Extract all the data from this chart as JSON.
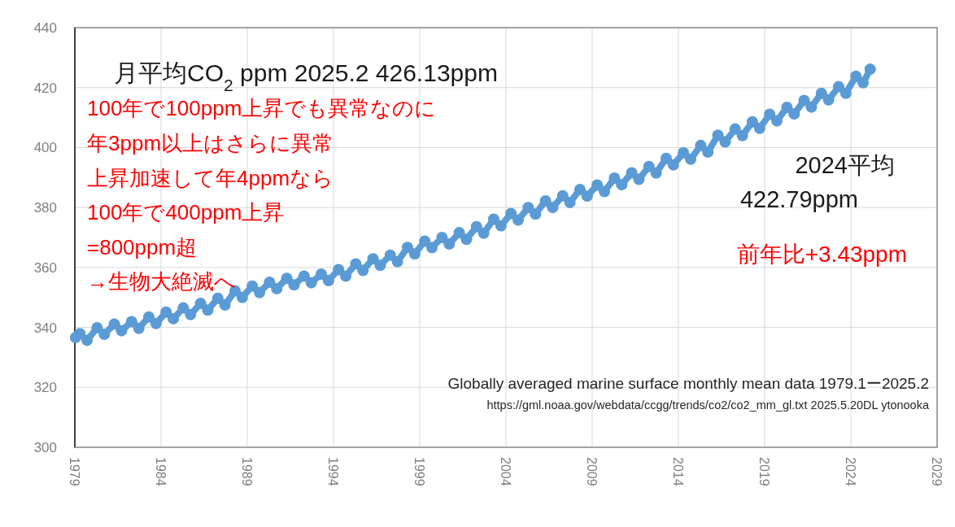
{
  "chart_data": {
    "type": "line",
    "title": "月平均CO$_{2}$  ppm   2025.2   426.13ppm",
    "annotations": [
      "100年で100ppm上昇でも異常なのに",
      "年3ppm以上はさらに異常",
      "上昇加速して年4ppmなら",
      "100年で400ppm上昇",
      "=800ppm超",
      "→生物大絶滅へ",
      "2024平均",
      "422.79ppm",
      "前年比+3.43ppm",
      "Globally averaged marine surface monthly mean data  1979.1ー2025.2",
      "https://gml.noaa.gov/webdata/ccgg/trends/co2/co2_mm_gl.txt  2025.5.20DL  ytonooka"
    ],
    "x": [
      1979.04,
      1979.29,
      1979.71,
      1980.29,
      1980.71,
      1981.29,
      1981.71,
      1982.29,
      1982.71,
      1983.29,
      1983.71,
      1984.29,
      1984.71,
      1985.29,
      1985.71,
      1986.29,
      1986.71,
      1987.29,
      1987.71,
      1988.29,
      1988.71,
      1989.29,
      1989.71,
      1990.29,
      1990.71,
      1991.29,
      1991.71,
      1992.29,
      1992.71,
      1993.29,
      1993.71,
      1994.29,
      1994.71,
      1995.29,
      1995.71,
      1996.29,
      1996.71,
      1997.29,
      1997.71,
      1998.29,
      1998.71,
      1999.29,
      1999.71,
      2000.29,
      2000.71,
      2001.29,
      2001.71,
      2002.29,
      2002.71,
      2003.29,
      2003.71,
      2004.29,
      2004.71,
      2005.29,
      2005.71,
      2006.29,
      2006.71,
      2007.29,
      2007.71,
      2008.29,
      2008.71,
      2009.29,
      2009.71,
      2010.29,
      2010.71,
      2011.29,
      2011.71,
      2012.29,
      2012.71,
      2013.29,
      2013.71,
      2014.29,
      2014.71,
      2015.29,
      2015.71,
      2016.29,
      2016.71,
      2017.29,
      2017.71,
      2018.29,
      2018.71,
      2019.29,
      2019.71,
      2020.29,
      2020.71,
      2021.29,
      2021.71,
      2022.29,
      2022.71,
      2023.29,
      2023.71,
      2024.29,
      2024.71,
      2025.12
    ],
    "series": [
      {
        "color": "#5b9bd5",
        "values": [
          336.6,
          337.9,
          335.7,
          339.9,
          337.7,
          341.1,
          338.9,
          341.9,
          339.7,
          343.5,
          341.3,
          345.1,
          342.9,
          346.5,
          344.3,
          348.0,
          345.8,
          349.7,
          347.5,
          352.2,
          350.0,
          353.8,
          351.6,
          355.1,
          352.9,
          356.4,
          354.2,
          357.1,
          354.9,
          357.8,
          355.6,
          359.3,
          357.1,
          361.2,
          359.0,
          362.9,
          360.7,
          364.1,
          361.9,
          366.7,
          364.5,
          368.8,
          366.6,
          370.0,
          367.8,
          371.6,
          369.4,
          373.6,
          371.4,
          376.1,
          373.9,
          378.0,
          375.8,
          380.0,
          377.8,
          382.2,
          380.0,
          383.9,
          381.7,
          386.0,
          383.8,
          387.5,
          385.3,
          389.8,
          387.6,
          391.6,
          389.4,
          393.7,
          391.5,
          396.4,
          394.2,
          398.3,
          396.1,
          400.7,
          398.5,
          404.1,
          401.9,
          406.2,
          404.0,
          408.6,
          406.4,
          411.1,
          408.9,
          413.4,
          411.2,
          415.7,
          413.5,
          418.1,
          415.9,
          420.3,
          418.1,
          423.8,
          421.6,
          426.13
        ]
      }
    ],
    "xlim": [
      1979,
      2029
    ],
    "xticks": [
      1979,
      1984,
      1989,
      1994,
      1999,
      2004,
      2009,
      2014,
      2019,
      2024,
      2029
    ],
    "ylim": [
      300,
      440
    ],
    "yticks": [
      300,
      320,
      340,
      360,
      380,
      400,
      420,
      440
    ],
    "grid": true,
    "marker": "circle"
  }
}
